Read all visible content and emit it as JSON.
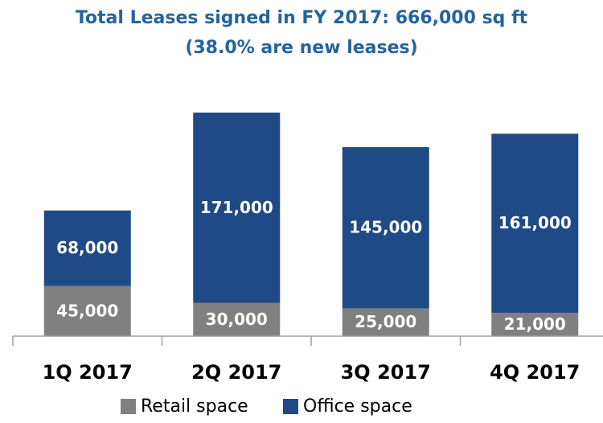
{
  "chart_data": {
    "type": "stacked_bar",
    "title": "Total Leases signed in FY 2017: 666,000 sq ft",
    "subtitle": "(38.0% are new leases)",
    "categories": [
      "1Q 2017",
      "2Q 2017",
      "3Q 2017",
      "4Q 2017"
    ],
    "series": [
      {
        "name": "Retail space",
        "color": "#808080",
        "values": [
          45000,
          30000,
          25000,
          21000
        ],
        "value_labels": [
          "45,000",
          "30,000",
          "25,000",
          "21,000"
        ]
      },
      {
        "name": "Office space",
        "color": "#1f4a86",
        "values": [
          68000,
          171000,
          145000,
          161000
        ],
        "value_labels": [
          "68,000",
          "171,000",
          "145,000",
          "161,000"
        ]
      }
    ]
  }
}
